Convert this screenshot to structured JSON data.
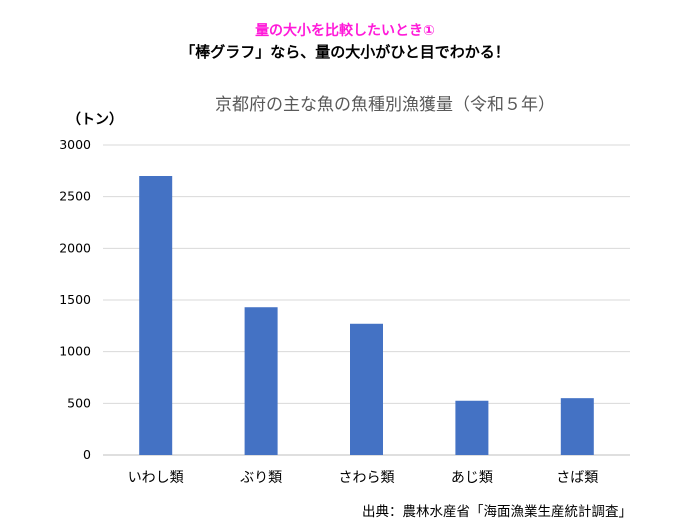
{
  "headings": {
    "line1": "量の大小を比較したいとき①",
    "line2": "「棒グラフ」なら、量の大小がひと目でわかる！"
  },
  "chart_data": {
    "type": "bar",
    "title": "京都府の主な魚の魚種別漁獲量（令和５年）",
    "ylabel": "（トン）",
    "xlabel": "",
    "categories": [
      "いわし類",
      "ぶり類",
      "さわら類",
      "あじ類",
      "さば類"
    ],
    "values": [
      2700,
      1430,
      1270,
      525,
      550
    ],
    "ylim": [
      0,
      3000
    ],
    "yticks": [
      0,
      500,
      1000,
      1500,
      2000,
      2500,
      3000
    ],
    "grid": true,
    "bar_color": "#4472c4"
  },
  "source": "出典：農林水産省「海面漁業生産統計調査」"
}
